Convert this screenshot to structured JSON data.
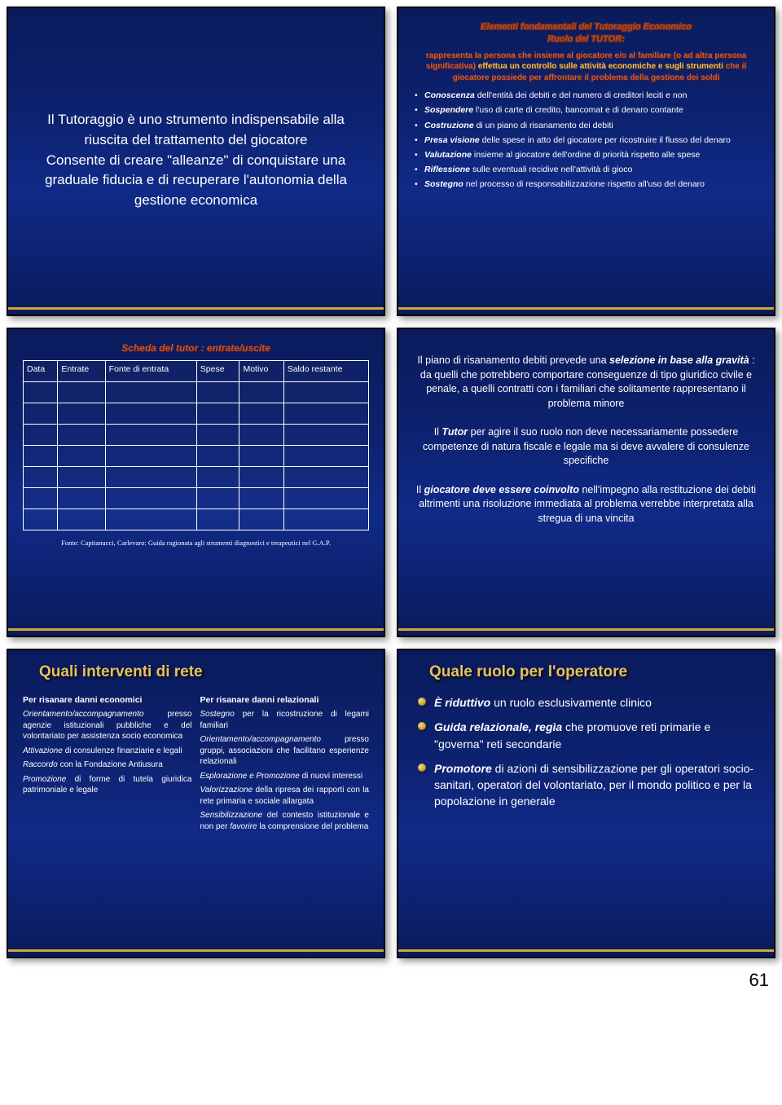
{
  "slide1": {
    "text": "Il Tutoraggio è uno strumento indispensabile alla riuscita del trattamento del giocatore\nConsente di creare \"alleanze\" di conquistare una graduale fiducia e di recuperare l'autonomia della gestione economica"
  },
  "slide2": {
    "title_line1": "Elementi fondamentali del Tutoraggio Economico",
    "title_line2": "Ruolo del TUTOR:",
    "subtitle_html": "rappresenta la persona che insieme al giocatore e/o al familiare (o ad altra persona significativa) <span class=\"yellow\">effettua un controllo sulle attività economiche e sugli strumenti</span> che il giocatore possiede per affrontare il problema della gestione dei soldi",
    "items": [
      "<span class=\"bi\">Conoscenza</span> dell'entità dei debiti e del numero di creditori leciti e non",
      "<span class=\"bi\">Sospendere</span> l'uso di carte di credito, bancomat e di denaro contante",
      "<span class=\"bi\">Costruzione</span> di un piano di risanamento dei debiti",
      "<span class=\"bi\">Presa visione</span> delle spese in atto del giocatore per ricostruire il flusso del denaro",
      "<span class=\"bi\">Valutazione</span> insieme al giocatore dell'ordine di priorità rispetto alle spese",
      "<span class=\"bi\">Riflessione</span> sulle eventuali recidive nell'attività di gioco",
      "<span class=\"bi\">Sostegno</span> nel processo di responsabilizzazione rispetto all'uso del denaro"
    ]
  },
  "slide3": {
    "title": "Scheda del tutor : entrate/uscite",
    "headers": [
      "Data",
      "Entrate",
      "Fonte di entrata",
      "Spese",
      "Motivo",
      "Saldo restante"
    ],
    "blank_rows": 7,
    "fonte": "Fonte: Capitanucci, Carlevaro: Guida ragionata agli strumenti diagnostici e terapeutici nel G.A.P."
  },
  "slide4": {
    "p1": "Il piano di risanamento debiti prevede una <span class=\"bi\">selezione in base alla gravità</span> : da quelli che potrebbero comportare conseguenze di tipo giuridico civile e penale, a quelli contratti con i familiari che solitamente rappresentano il problema minore",
    "p2": "Il <span class=\"bi\">Tutor</span> per agire il suo ruolo non deve necessariamente possedere competenze di natura fiscale e legale ma si deve avvalere di consulenze specifiche",
    "p3": "Il <span class=\"bi\">giocatore deve essere coinvolto</span> nell'impegno alla restituzione dei debiti altrimenti una risoluzione immediata al problema verrebbe interpretata alla stregua di una vincita"
  },
  "slide5": {
    "heading": "Quali interventi di rete",
    "col1_title": "Per risanare danni economici",
    "col1_items": [
      "<span class=\"ital\">Orientamento/accompagnamento</span> presso agenzie istituzionali pubbliche e del volontariato per assistenza socio economica",
      "<span class=\"ital\">Attivazione</span> di consulenze finanziarie e legali",
      "<span class=\"ital\">Raccordo</span> con la Fondazione Antiusura",
      "<span class=\"ital\">Promozione</span> di forme di tutela giuridica patrimoniale e legale"
    ],
    "col2_title": "Per risanare danni relazionali",
    "col2_items": [
      "<span class=\"ital\">Sostegno</span> per la ricostruzione di legami familiari",
      "<span class=\"ital\">Orientamento/accompagnamento</span> presso gruppi, associazioni che facilitano esperienze relazionali",
      "<span class=\"ital\">Esplorazione e Promozione</span> di nuovi interessi",
      "<span class=\"ital\">Valorizzazione</span> della ripresa dei rapporti con la rete primaria e sociale allargata",
      "<span class=\"ital\">Sensibilizzazione</span> del contesto istituzionale e non per <span class=\"ital\">favorire</span> la comprensione del problema"
    ]
  },
  "slide6": {
    "heading": "Quale ruolo per l'operatore",
    "items": [
      "<span class=\"bi\">È riduttivo</span> un ruolo esclusivamente clinico",
      "<span class=\"bi\">Guida relazionale, regìa</span> che promuove reti primarie e \"governa\" reti secondarie",
      "<span class=\"bi\">Promotore</span> di azioni di sensibilizzazione per gli operatori socio-sanitari, operatori del volontariato, per il mondo politico e per la popolazione in generale"
    ]
  },
  "page_number": "61"
}
